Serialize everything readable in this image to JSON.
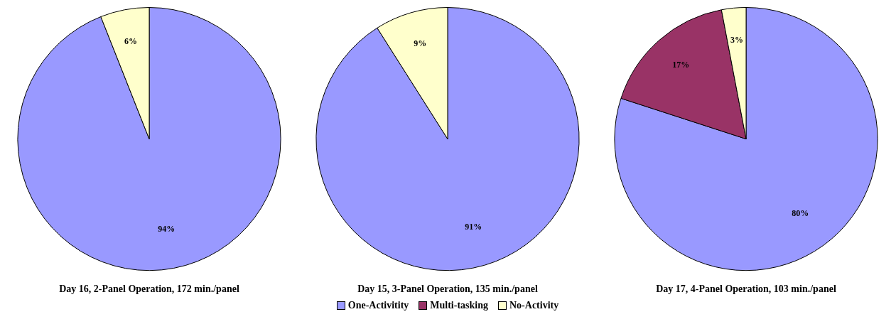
{
  "chart_data": [
    {
      "type": "pie",
      "title": "Day 16, 2-Panel Operation, 172 min./panel",
      "categories": [
        null,
        null,
        null
      ],
      "values": [
        94,
        0,
        6
      ],
      "value_labels": [
        "94%",
        null,
        "6%"
      ],
      "colors": [
        "#9999ff",
        "#993366",
        "#ffffcc"
      ],
      "legend": false
    },
    {
      "type": "pie",
      "title": "Day 15, 3-Panel Operation, 135 min./panel",
      "categories": [
        "One-Activitity",
        "Multi-tasking",
        "No-Activity"
      ],
      "values": [
        91,
        0,
        9
      ],
      "value_labels": [
        "91%",
        null,
        "9%"
      ],
      "colors": [
        "#9999ff",
        "#993366",
        "#ffffcc"
      ],
      "legend": "bottom"
    },
    {
      "type": "pie",
      "title": "Day 17, 4-Panel Operation, 103 min./panel",
      "categories": [
        null,
        null,
        null
      ],
      "values": [
        80,
        17,
        3
      ],
      "value_labels": [
        "80%",
        "17%",
        "3%"
      ],
      "colors": [
        "#9999ff",
        "#993366",
        "#ffffcc"
      ],
      "legend": false
    }
  ]
}
